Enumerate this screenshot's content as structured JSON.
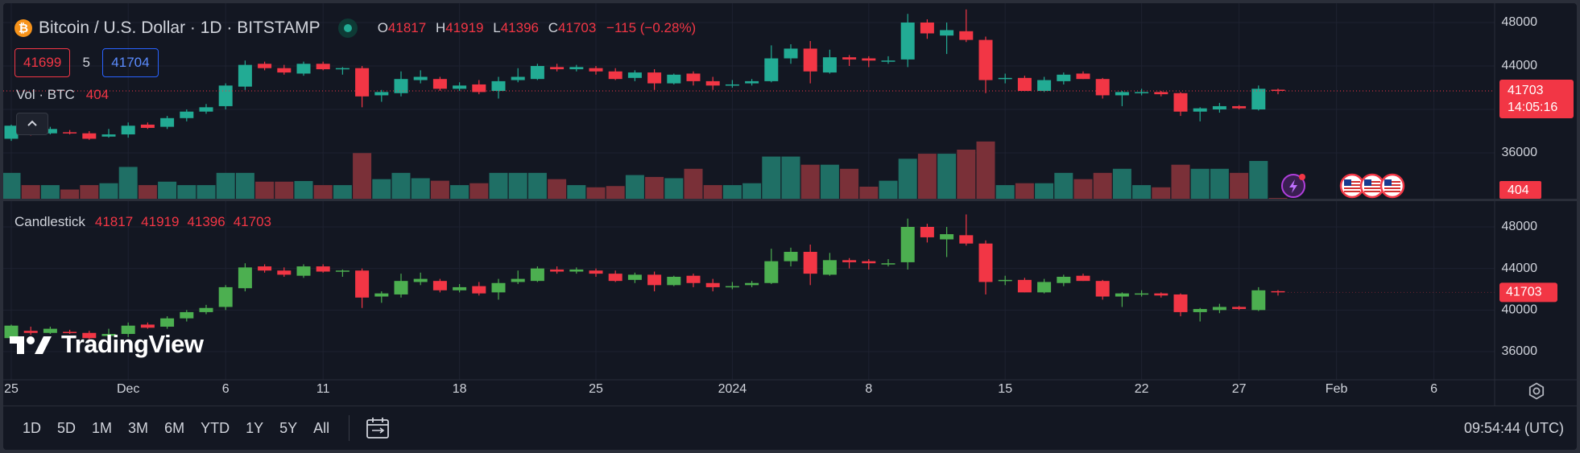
{
  "header": {
    "coin_glyph": "₿",
    "title": "Bitcoin / U.S. Dollar · 1D · BITSTAMP",
    "ohlc": {
      "o_label": "O",
      "o": "41817",
      "h_label": "H",
      "h": "41919",
      "l_label": "L",
      "l": "41396",
      "c_label": "C",
      "c": "41703",
      "change": "−115 (−0.28%)"
    }
  },
  "price_boxes": {
    "sell": "41699",
    "spread": "5",
    "buy": "41704"
  },
  "volume_legend": {
    "name": "Vol · BTC",
    "value": "404"
  },
  "candle_legend": {
    "name": "Candlestick",
    "o": "41817",
    "h": "41919",
    "l": "41396",
    "c": "41703"
  },
  "watermark": "TradingView",
  "colors": {
    "up": "#22ab94",
    "down": "#f23645",
    "up_lower": "#4caf50",
    "bg": "#131722"
  },
  "icons": {
    "collapse": "chevron-up-icon",
    "settings": "gear-icon",
    "calendar": "calendar-range-icon",
    "lightning": "lightning-event-icon",
    "flag": "us-flag-icon"
  },
  "bottom_bar": {
    "ranges": [
      "1D",
      "5D",
      "1M",
      "3M",
      "6M",
      "YTD",
      "1Y",
      "5Y",
      "All"
    ],
    "clock": "09:54:44 (UTC)"
  },
  "chart_data": [
    {
      "type": "candlestick",
      "title": "Bitcoin / U.S. Dollar · 1D · BITSTAMP",
      "pane": "top",
      "y_ticks": [
        36000,
        40000,
        44000,
        48000
      ],
      "ylim": [
        35200,
        49200
      ],
      "x_tick_labels": [
        {
          "label": "25",
          "index": 0
        },
        {
          "label": "Dec",
          "index": 6
        },
        {
          "label": "6",
          "index": 11
        },
        {
          "label": "11",
          "index": 16
        },
        {
          "label": "18",
          "index": 23
        },
        {
          "label": "25",
          "index": 30
        },
        {
          "label": "2024",
          "index": 37
        },
        {
          "label": "8",
          "index": 44
        },
        {
          "label": "15",
          "index": 51
        },
        {
          "label": "22",
          "index": 58
        },
        {
          "label": "27",
          "index": 63
        },
        {
          "label": "Feb",
          "index": 68
        },
        {
          "label": "6",
          "index": 73
        }
      ],
      "last_price": 41703,
      "countdown": "14:05:16",
      "volume_axis_label": "404",
      "candles": [
        {
          "o": 37300,
          "h": 38600,
          "l": 37100,
          "c": 38500
        },
        {
          "o": 38000,
          "h": 38400,
          "l": 37600,
          "c": 37800
        },
        {
          "o": 37800,
          "h": 38400,
          "l": 37700,
          "c": 38200
        },
        {
          "o": 37900,
          "h": 38100,
          "l": 37700,
          "c": 37800
        },
        {
          "o": 37800,
          "h": 38000,
          "l": 37200,
          "c": 37300
        },
        {
          "o": 37500,
          "h": 38200,
          "l": 37400,
          "c": 37700
        },
        {
          "o": 37700,
          "h": 38800,
          "l": 37400,
          "c": 38500
        },
        {
          "o": 38600,
          "h": 38800,
          "l": 38200,
          "c": 38300
        },
        {
          "o": 38400,
          "h": 39400,
          "l": 38200,
          "c": 39200
        },
        {
          "o": 39200,
          "h": 40000,
          "l": 38900,
          "c": 39800
        },
        {
          "o": 39800,
          "h": 40500,
          "l": 39600,
          "c": 40200
        },
        {
          "o": 40300,
          "h": 42400,
          "l": 40000,
          "c": 42200
        },
        {
          "o": 42100,
          "h": 44500,
          "l": 41800,
          "c": 44100
        },
        {
          "o": 44200,
          "h": 44400,
          "l": 43600,
          "c": 43800
        },
        {
          "o": 43800,
          "h": 44100,
          "l": 43200,
          "c": 43400
        },
        {
          "o": 43300,
          "h": 44400,
          "l": 43100,
          "c": 44200
        },
        {
          "o": 44200,
          "h": 44400,
          "l": 43600,
          "c": 43700
        },
        {
          "o": 43700,
          "h": 43900,
          "l": 43200,
          "c": 43800
        },
        {
          "o": 43800,
          "h": 44000,
          "l": 40200,
          "c": 41200
        },
        {
          "o": 41300,
          "h": 41800,
          "l": 40700,
          "c": 41600
        },
        {
          "o": 41500,
          "h": 43500,
          "l": 41200,
          "c": 42800
        },
        {
          "o": 42700,
          "h": 43600,
          "l": 42400,
          "c": 43000
        },
        {
          "o": 42800,
          "h": 43000,
          "l": 41700,
          "c": 41900
        },
        {
          "o": 41900,
          "h": 42500,
          "l": 41700,
          "c": 42200
        },
        {
          "o": 42300,
          "h": 42700,
          "l": 41400,
          "c": 41600
        },
        {
          "o": 41700,
          "h": 43000,
          "l": 41000,
          "c": 42600
        },
        {
          "o": 42700,
          "h": 43800,
          "l": 42500,
          "c": 43000
        },
        {
          "o": 42800,
          "h": 44200,
          "l": 42700,
          "c": 44000
        },
        {
          "o": 43900,
          "h": 44200,
          "l": 43500,
          "c": 43700
        },
        {
          "o": 43700,
          "h": 44100,
          "l": 43500,
          "c": 43900
        },
        {
          "o": 43800,
          "h": 44000,
          "l": 43200,
          "c": 43500
        },
        {
          "o": 43500,
          "h": 43800,
          "l": 42700,
          "c": 42800
        },
        {
          "o": 42900,
          "h": 43600,
          "l": 42600,
          "c": 43400
        },
        {
          "o": 43400,
          "h": 43700,
          "l": 41800,
          "c": 42400
        },
        {
          "o": 42400,
          "h": 43300,
          "l": 42300,
          "c": 43200
        },
        {
          "o": 43300,
          "h": 43500,
          "l": 42200,
          "c": 42600
        },
        {
          "o": 42600,
          "h": 43000,
          "l": 41800,
          "c": 42200
        },
        {
          "o": 42300,
          "h": 42700,
          "l": 42000,
          "c": 42300
        },
        {
          "o": 42400,
          "h": 42800,
          "l": 42200,
          "c": 42600
        },
        {
          "o": 42600,
          "h": 45900,
          "l": 42500,
          "c": 44700
        },
        {
          "o": 44700,
          "h": 46000,
          "l": 44200,
          "c": 45600
        },
        {
          "o": 45600,
          "h": 46300,
          "l": 42400,
          "c": 43500
        },
        {
          "o": 43400,
          "h": 45500,
          "l": 43300,
          "c": 44800
        },
        {
          "o": 44800,
          "h": 45000,
          "l": 44000,
          "c": 44600
        },
        {
          "o": 44700,
          "h": 44900,
          "l": 43900,
          "c": 44500
        },
        {
          "o": 44400,
          "h": 44900,
          "l": 44200,
          "c": 44500
        },
        {
          "o": 44600,
          "h": 48800,
          "l": 43900,
          "c": 48000
        },
        {
          "o": 48000,
          "h": 48300,
          "l": 46500,
          "c": 47000
        },
        {
          "o": 46800,
          "h": 48000,
          "l": 45100,
          "c": 47300
        },
        {
          "o": 47200,
          "h": 49200,
          "l": 46200,
          "c": 46400
        },
        {
          "o": 46400,
          "h": 46700,
          "l": 41500,
          "c": 42700
        },
        {
          "o": 42800,
          "h": 43300,
          "l": 42400,
          "c": 42900
        },
        {
          "o": 42900,
          "h": 43100,
          "l": 41700,
          "c": 41700
        },
        {
          "o": 41700,
          "h": 43000,
          "l": 41600,
          "c": 42700
        },
        {
          "o": 42600,
          "h": 43400,
          "l": 42300,
          "c": 43200
        },
        {
          "o": 43300,
          "h": 43500,
          "l": 42800,
          "c": 42800
        },
        {
          "o": 42800,
          "h": 42900,
          "l": 41000,
          "c": 41300
        },
        {
          "o": 41300,
          "h": 41700,
          "l": 40300,
          "c": 41600
        },
        {
          "o": 41600,
          "h": 41900,
          "l": 41300,
          "c": 41600
        },
        {
          "o": 41600,
          "h": 41700,
          "l": 41200,
          "c": 41400
        },
        {
          "o": 41500,
          "h": 41600,
          "l": 39400,
          "c": 39800
        },
        {
          "o": 39800,
          "h": 40200,
          "l": 38900,
          "c": 40100
        },
        {
          "o": 40000,
          "h": 40600,
          "l": 39700,
          "c": 40300
        },
        {
          "o": 40300,
          "h": 40400,
          "l": 40000,
          "c": 40100
        },
        {
          "o": 40000,
          "h": 42200,
          "l": 39900,
          "c": 41900
        },
        {
          "o": 41817,
          "h": 41919,
          "l": 41396,
          "c": 41703
        }
      ],
      "volumes": [
        8.5,
        4.6,
        4.6,
        3.2,
        4.6,
        5.2,
        10.4,
        4.6,
        5.7,
        4.6,
        4.6,
        8.5,
        8.5,
        5.7,
        5.7,
        5.9,
        4.6,
        4.6,
        14.8,
        6.5,
        8.5,
        6.8,
        6.0,
        4.6,
        5.2,
        8.5,
        8.5,
        8.5,
        6.5,
        4.6,
        3.9,
        4.3,
        7.8,
        7.2,
        6.8,
        9.8,
        4.6,
        4.6,
        5.2,
        13.7,
        13.7,
        11.1,
        11.1,
        9.8,
        4.1,
        6.0,
        13.0,
        14.6,
        14.6,
        15.9,
        18.5,
        4.6,
        5.2,
        5.2,
        8.5,
        6.5,
        8.5,
        9.8,
        4.6,
        3.9,
        11.1,
        9.8,
        9.8,
        8.5,
        12.3,
        0.5
      ],
      "markers": [
        "lightning-event-icon",
        "us-flag-icon",
        "us-flag-icon",
        "us-flag-icon"
      ]
    },
    {
      "type": "candlestick",
      "title": "Candlestick",
      "pane": "bottom",
      "y_ticks": [
        36000,
        40000,
        44000,
        48000
      ],
      "ylim": [
        35200,
        49200
      ],
      "last_price": 41703
    }
  ]
}
